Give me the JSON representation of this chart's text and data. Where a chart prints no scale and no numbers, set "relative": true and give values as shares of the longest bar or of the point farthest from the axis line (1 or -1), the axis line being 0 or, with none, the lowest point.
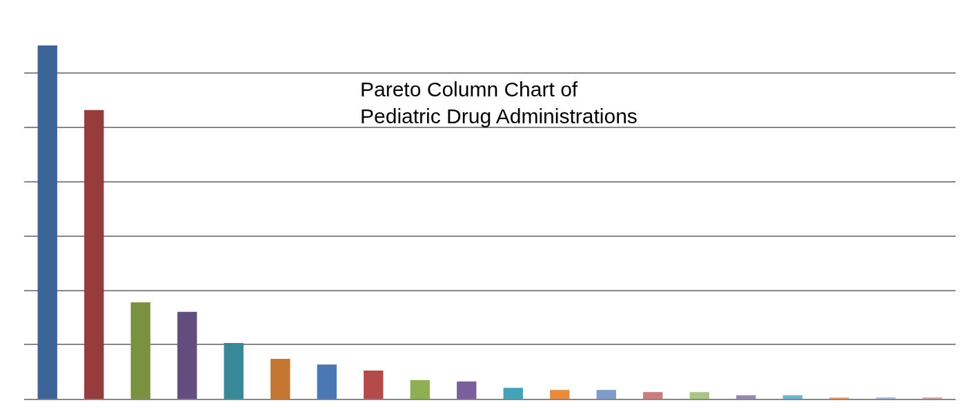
{
  "chart_data": {
    "type": "bar",
    "title": "Pareto Column Chart of\nPediatric Drug Administrations",
    "relative": true,
    "grid": "y",
    "categories": [
      null,
      null,
      null,
      null,
      null,
      null,
      null,
      null,
      null,
      null,
      null,
      null,
      null,
      null,
      null,
      null,
      null,
      null,
      null,
      null
    ],
    "values": [
      1,
      0.817,
      0.273,
      0.246,
      0.158,
      0.113,
      0.097,
      0.08,
      0.053,
      0.049,
      0.031,
      0.025,
      0.025,
      0.019,
      0.019,
      0.01,
      0.01,
      0.004,
      0.004,
      0.004
    ],
    "colors": [
      "#3c6496",
      "#963c3c",
      "#7a9141",
      "#634d7e",
      "#388898",
      "#c47632",
      "#4a78b2",
      "#b54a4a",
      "#8faf52",
      "#7a5f9c",
      "#46a1bb",
      "#e88b3e",
      "#7e9ccb",
      "#cb7b7b",
      "#aac684",
      "#9987b4",
      "#6fb6cc",
      "#f4a975",
      "#a9bde0",
      "#dcaaaa"
    ]
  }
}
